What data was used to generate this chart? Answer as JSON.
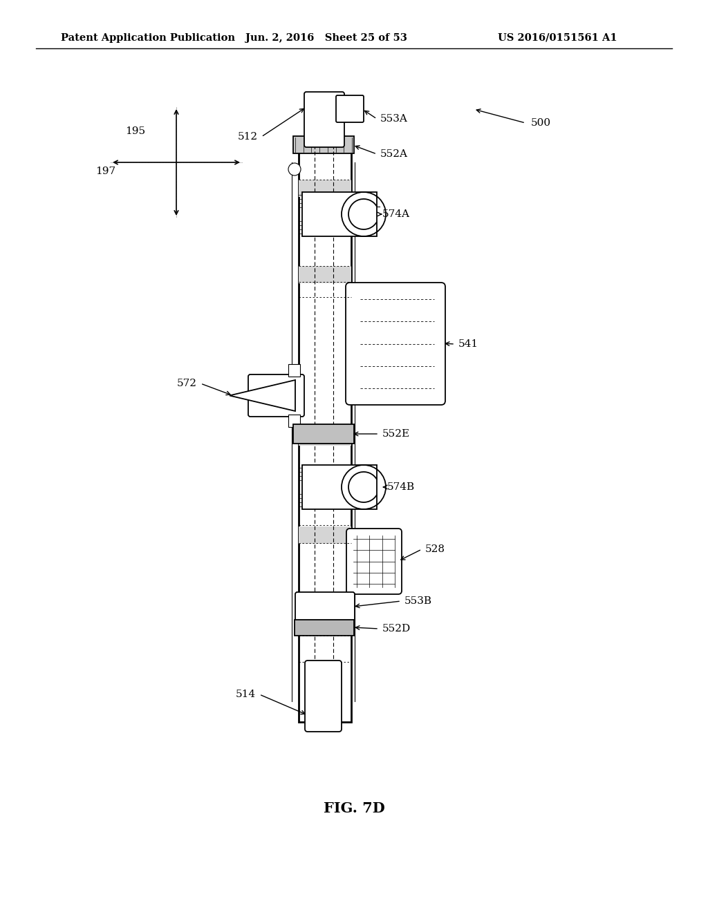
{
  "title_left": "Patent Application Publication",
  "title_mid": "Jun. 2, 2016   Sheet 25 of 53",
  "title_right": "US 2016/0151561 A1",
  "fig_label": "FIG. 7D",
  "bg_color": "#ffffff",
  "line_color": "#000000",
  "header_font_size": 10.5
}
